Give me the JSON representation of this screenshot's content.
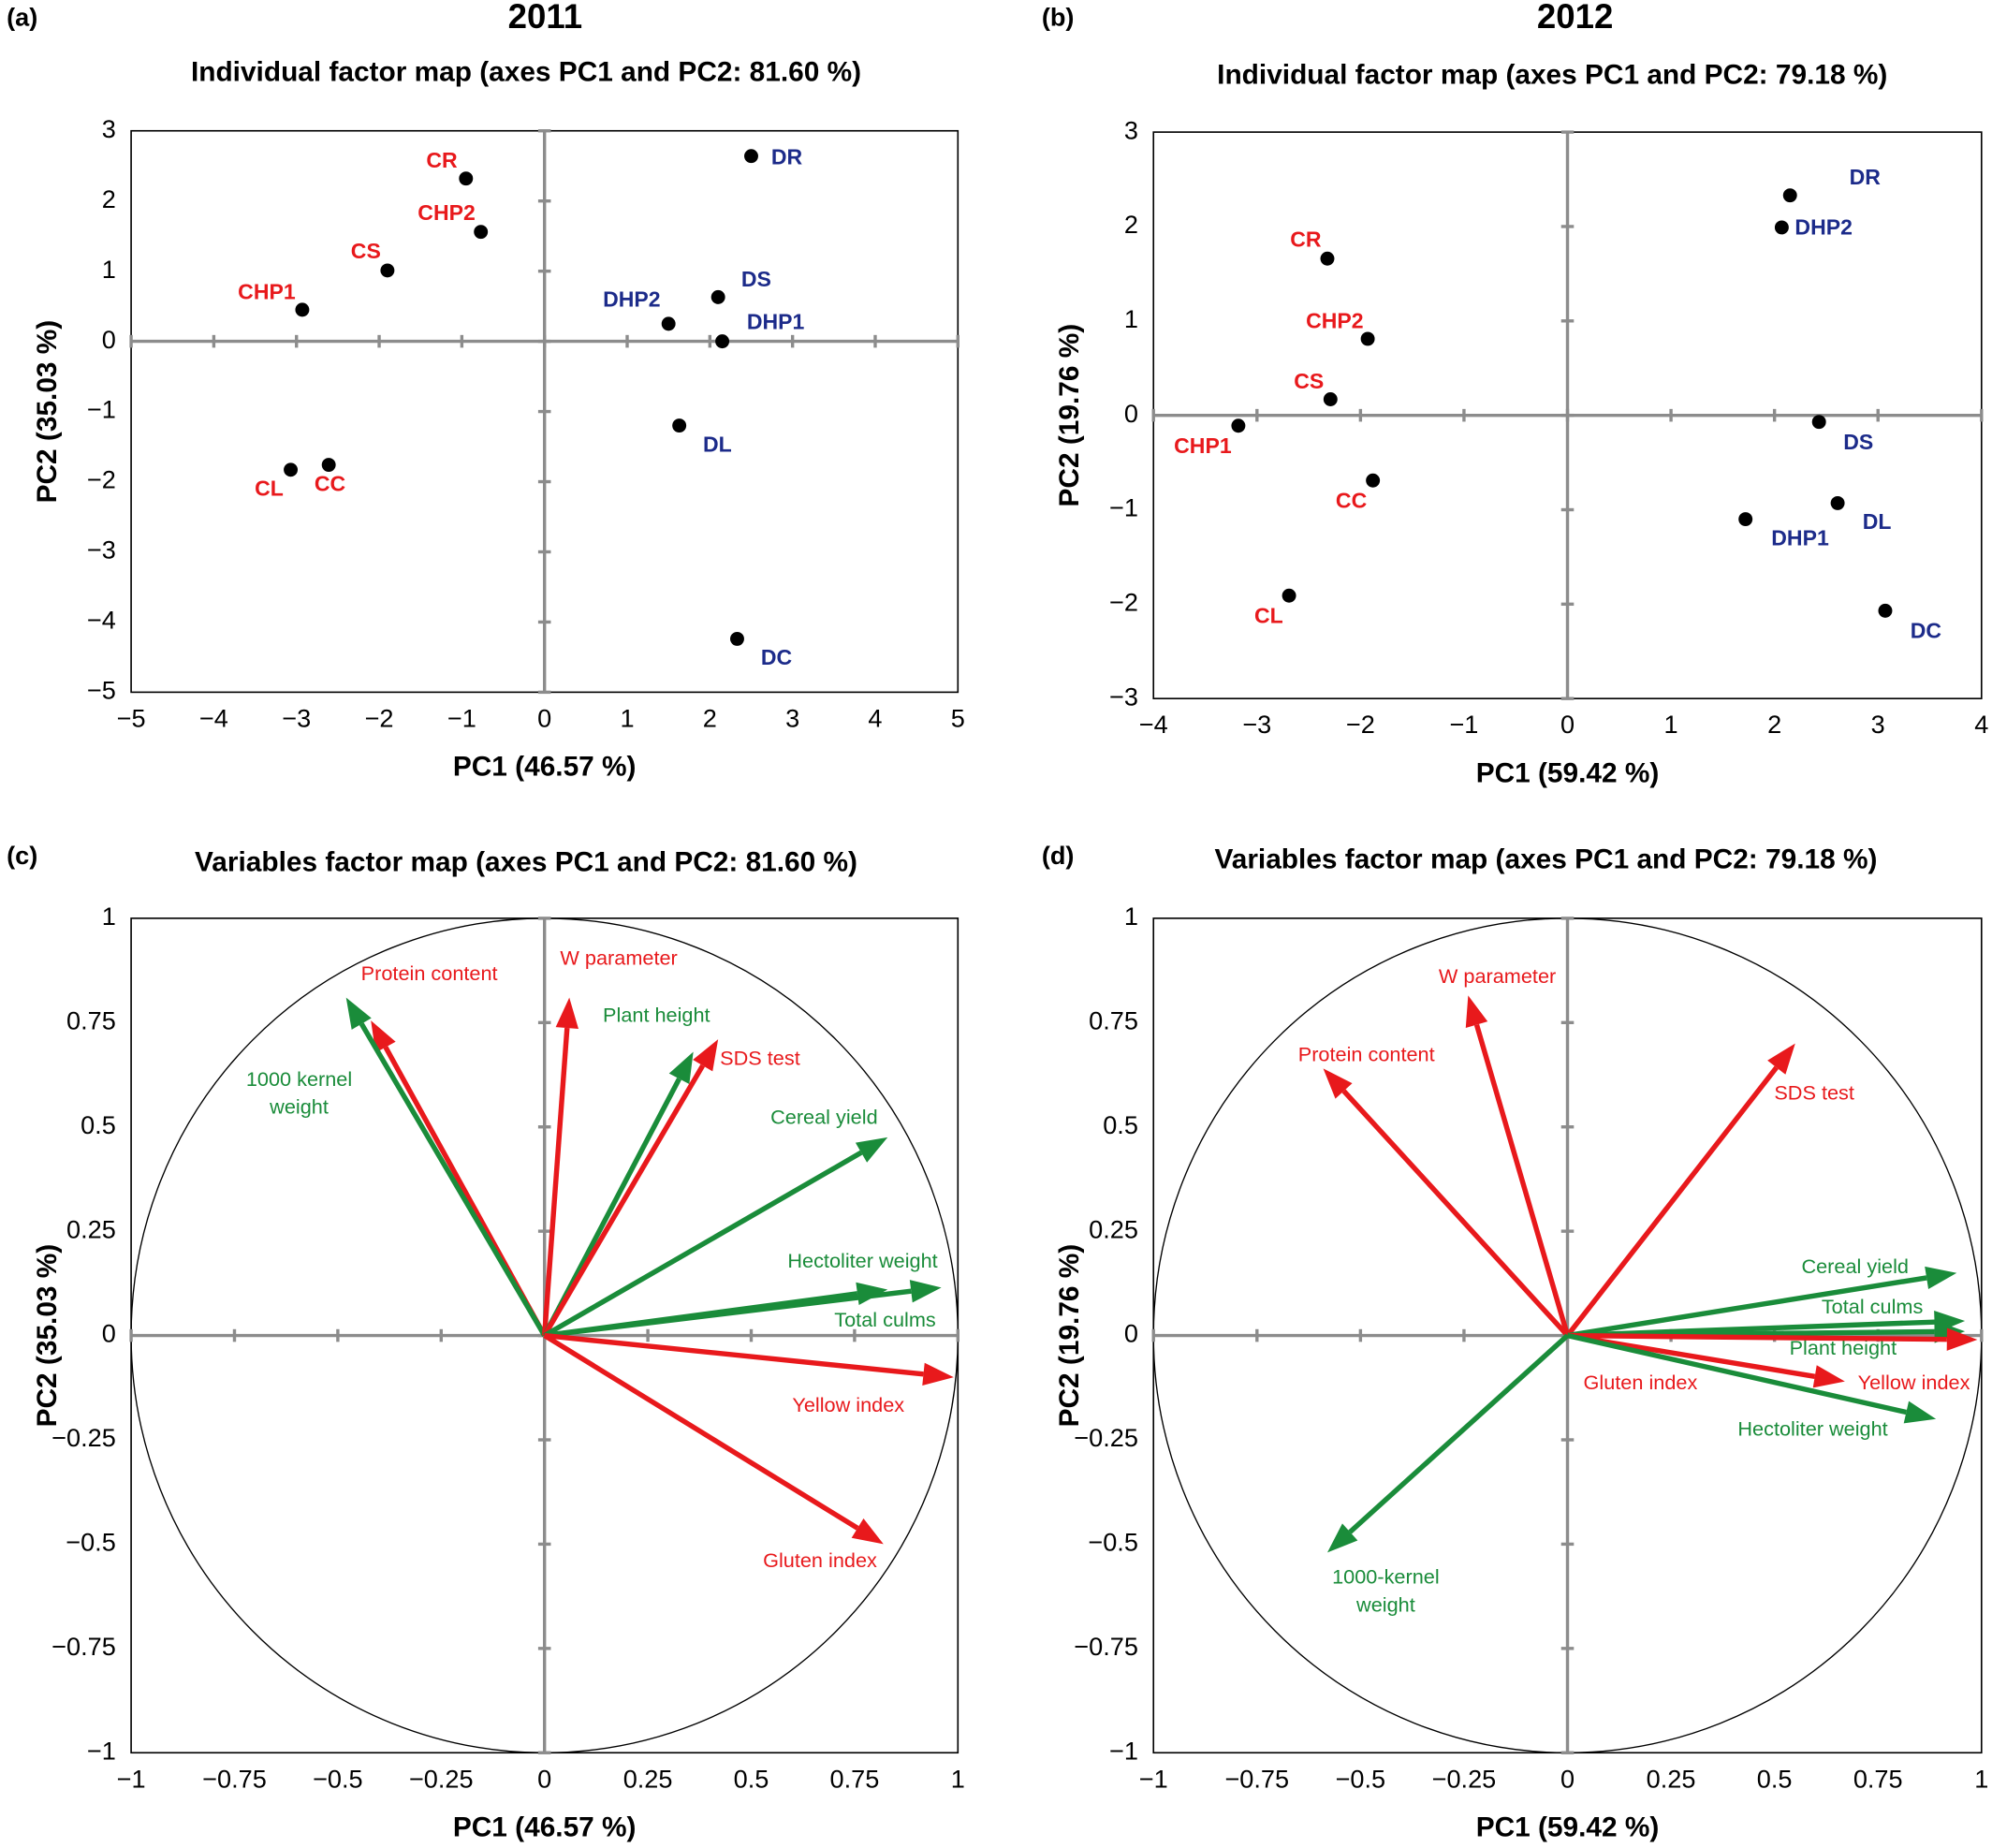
{
  "chart_data": [
    {
      "type": "scatter",
      "panel_label": "(a)",
      "heading": "2011",
      "title": "Individual factor map (axes PC1 and PC2: 81.60 %)",
      "xlabel": "PC1 (46.57 %)",
      "ylabel": "PC2 (35.03 %)",
      "xlim": [
        -5,
        5
      ],
      "ylim": [
        -5,
        3
      ],
      "xticks": [
        {
          "value": -5,
          "label": "−5"
        },
        {
          "value": -4,
          "label": "−4"
        },
        {
          "value": -3,
          "label": "−3"
        },
        {
          "value": -2,
          "label": "−2"
        },
        {
          "value": -1,
          "label": "−1"
        },
        0,
        1,
        2,
        3,
        4,
        5
      ],
      "yticks": [
        {
          "value": -5,
          "label": "−5"
        },
        {
          "value": -4,
          "label": "−4"
        },
        {
          "value": -3,
          "label": "−3"
        },
        {
          "value": -2,
          "label": "−2"
        },
        {
          "value": -1,
          "label": "−1"
        },
        0,
        1,
        2,
        3
      ],
      "points": [
        {
          "label": "CR",
          "x": -0.95,
          "y": 2.32,
          "color": "#e8191c"
        },
        {
          "label": "CHP2",
          "x": -0.77,
          "y": 1.56,
          "color": "#e8191c"
        },
        {
          "label": "CS",
          "x": -1.9,
          "y": 1.01,
          "color": "#e8191c"
        },
        {
          "label": "CHP1",
          "x": -2.93,
          "y": 0.45,
          "color": "#e8191c"
        },
        {
          "label": "CL",
          "x": -3.07,
          "y": -1.83,
          "color": "#e8191c"
        },
        {
          "label": "CC",
          "x": -2.61,
          "y": -1.76,
          "color": "#e8191c"
        },
        {
          "label": "DR",
          "x": 2.5,
          "y": 2.64,
          "color": "#1c2b8a"
        },
        {
          "label": "DS",
          "x": 2.1,
          "y": 0.63,
          "color": "#1c2b8a"
        },
        {
          "label": "DHP2",
          "x": 1.5,
          "y": 0.25,
          "color": "#1c2b8a"
        },
        {
          "label": "DHP1",
          "x": 2.15,
          "y": 0.0,
          "color": "#1c2b8a"
        },
        {
          "label": "DL",
          "x": 1.63,
          "y": -1.2,
          "color": "#1c2b8a"
        },
        {
          "label": "DC",
          "x": 2.33,
          "y": -4.24,
          "color": "#1c2b8a"
        }
      ]
    },
    {
      "type": "scatter",
      "panel_label": "(b)",
      "heading": "2012",
      "title": "Individual factor map (axes PC1 and PC2: 79.18 %)",
      "xlabel": "PC1 (59.42 %)",
      "ylabel": "PC2 (19.76 %)",
      "xlim": [
        -4,
        4
      ],
      "ylim": [
        -3,
        3
      ],
      "xticks": [
        {
          "value": -4,
          "label": "−4"
        },
        {
          "value": -3,
          "label": "−3"
        },
        {
          "value": -2,
          "label": "−2"
        },
        {
          "value": -1,
          "label": "−1"
        },
        0,
        1,
        2,
        3,
        4
      ],
      "yticks": [
        {
          "value": -3,
          "label": "−3"
        },
        {
          "value": -2,
          "label": "−2"
        },
        {
          "value": -1,
          "label": "−1"
        },
        0,
        1,
        2,
        3
      ],
      "points": [
        {
          "label": "DR",
          "x": 2.15,
          "y": 2.33,
          "color": "#1c2b8a"
        },
        {
          "label": "DHP2",
          "x": 2.07,
          "y": 1.99,
          "color": "#1c2b8a"
        },
        {
          "label": "CR",
          "x": -2.32,
          "y": 1.66,
          "color": "#e8191c"
        },
        {
          "label": "CHP2",
          "x": -1.93,
          "y": 0.81,
          "color": "#e8191c"
        },
        {
          "label": "CS",
          "x": -2.29,
          "y": 0.17,
          "color": "#e8191c"
        },
        {
          "label": "CHP1",
          "x": -3.18,
          "y": -0.11,
          "color": "#e8191c"
        },
        {
          "label": "DS",
          "x": 2.43,
          "y": -0.07,
          "color": "#1c2b8a"
        },
        {
          "label": "CC",
          "x": -1.88,
          "y": -0.69,
          "color": "#e8191c"
        },
        {
          "label": "DL",
          "x": 2.61,
          "y": -0.93,
          "color": "#1c2b8a"
        },
        {
          "label": "DHP1",
          "x": 1.72,
          "y": -1.1,
          "color": "#1c2b8a"
        },
        {
          "label": "CL",
          "x": -2.69,
          "y": -1.91,
          "color": "#e8191c"
        },
        {
          "label": "DC",
          "x": 3.07,
          "y": -2.07,
          "color": "#1c2b8a"
        }
      ]
    },
    {
      "type": "arrows",
      "panel_label": "(c)",
      "title": "Variables factor map (axes PC1 and PC2: 81.60 %)",
      "xlabel": "PC1 (46.57 %)",
      "ylabel": "PC2 (35.03 %)",
      "unit_circle": true,
      "xlim": [
        -1,
        1
      ],
      "ylim": [
        -1,
        1
      ],
      "xticks": [
        {
          "value": -1,
          "label": "−1"
        },
        {
          "value": -0.75,
          "label": "−0.75"
        },
        {
          "value": -0.5,
          "label": "−0.5"
        },
        {
          "value": -0.25,
          "label": "−0.25"
        },
        0,
        0.25,
        0.5,
        0.75,
        1
      ],
      "yticks": [
        {
          "value": -1,
          "label": "−1"
        },
        {
          "value": -0.75,
          "label": "−0.75"
        },
        {
          "value": -0.5,
          "label": "−0.5"
        },
        {
          "value": -0.25,
          "label": "−0.25"
        },
        0,
        0.25,
        0.5,
        0.75,
        1
      ],
      "vectors": [
        {
          "label": "Protein content",
          "x": -0.42,
          "y": 0.755,
          "color": "#e8191c"
        },
        {
          "label": [
            "1000 kernel",
            "weight"
          ],
          "x": -0.48,
          "y": 0.81,
          "color": "#1a8c3a"
        },
        {
          "label": "W parameter",
          "x": 0.06,
          "y": 0.81,
          "color": "#e8191c"
        },
        {
          "label": "Plant height",
          "x": 0.36,
          "y": 0.68,
          "color": "#1a8c3a"
        },
        {
          "label": "SDS test",
          "x": 0.42,
          "y": 0.71,
          "color": "#e8191c"
        },
        {
          "label": "Cereal yield",
          "x": 0.83,
          "y": 0.475,
          "color": "#1a8c3a"
        },
        {
          "label": "Hectoliter weight",
          "x": 0.96,
          "y": 0.115,
          "color": "#1a8c3a"
        },
        {
          "label": "Total culms",
          "x": 0.83,
          "y": 0.11,
          "color": "#1a8c3a"
        },
        {
          "label": "Yellow index",
          "x": 0.99,
          "y": -0.1,
          "color": "#e8191c"
        },
        {
          "label": "Gluten index",
          "x": 0.82,
          "y": -0.5,
          "color": "#e8191c"
        }
      ]
    },
    {
      "type": "arrows",
      "panel_label": "(d)",
      "title": "Variables factor map (axes PC1 and PC2: 79.18 %)",
      "xlabel": "PC1 (59.42 %)",
      "ylabel": "PC2 (19.76 %)",
      "unit_circle": true,
      "xlim": [
        -1,
        1
      ],
      "ylim": [
        -1,
        1
      ],
      "xticks": [
        {
          "value": -1,
          "label": "−1"
        },
        {
          "value": -0.75,
          "label": "−0.75"
        },
        {
          "value": -0.5,
          "label": "−0.5"
        },
        {
          "value": -0.25,
          "label": "−0.25"
        },
        0,
        0.25,
        0.5,
        0.75,
        1
      ],
      "yticks": [
        {
          "value": -1,
          "label": "−1"
        },
        {
          "value": -0.75,
          "label": "−0.75"
        },
        {
          "value": -0.5,
          "label": "−0.5"
        },
        {
          "value": -0.25,
          "label": "−0.25"
        },
        0,
        0.25,
        0.5,
        0.75,
        1
      ],
      "vectors": [
        {
          "label": "W parameter",
          "x": -0.24,
          "y": 0.815,
          "color": "#e8191c"
        },
        {
          "label": "Protein content",
          "x": -0.59,
          "y": 0.64,
          "color": "#e8191c"
        },
        {
          "label": "SDS test",
          "x": 0.55,
          "y": 0.7,
          "color": "#e8191c"
        },
        {
          "label": "Cereal yield",
          "x": 0.94,
          "y": 0.15,
          "color": "#1a8c3a"
        },
        {
          "label": "Total culms",
          "x": 0.96,
          "y": 0.035,
          "color": "#1a8c3a"
        },
        {
          "label": "Plant height",
          "x": 0.96,
          "y": 0.01,
          "color": "#1a8c3a"
        },
        {
          "label": "Gluten index",
          "x": 0.67,
          "y": -0.11,
          "color": "#e8191c"
        },
        {
          "label": "Yellow index",
          "x": 0.99,
          "y": -0.01,
          "color": "#e8191c"
        },
        {
          "label": "Hectoliter weight",
          "x": 0.89,
          "y": -0.2,
          "color": "#1a8c3a"
        },
        {
          "label": [
            "1000-kernel",
            "weight"
          ],
          "x": -0.58,
          "y": -0.52,
          "color": "#1a8c3a"
        }
      ]
    }
  ]
}
